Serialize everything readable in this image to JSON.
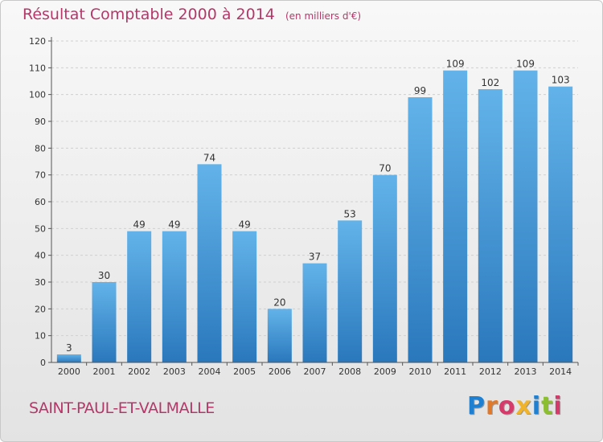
{
  "header": {
    "title": "Résultat Comptable 2000 à 2014",
    "unit": "(en milliers d'€)"
  },
  "footer": {
    "commune": "SAINT-PAUL-ET-VALMALLE",
    "logo": {
      "text": "Proxiti",
      "letter_colors": [
        "#1f7fd0",
        "#e0792a",
        "#d63a6a",
        "#f1b32a",
        "#1f7fd0",
        "#8cbf2f",
        "#d63a6a"
      ]
    }
  },
  "colors": {
    "title": "#b33868",
    "bar_light": "#63b3ea",
    "bar_dark": "#2a78bc",
    "grid": "#d0d0d0"
  },
  "chart_data": {
    "type": "bar",
    "title": "Résultat Comptable 2000 à 2014",
    "subtitle": "(en milliers d'€)",
    "categories": [
      "2000",
      "2001",
      "2002",
      "2003",
      "2004",
      "2005",
      "2006",
      "2007",
      "2008",
      "2009",
      "2010",
      "2011",
      "2012",
      "2013",
      "2014"
    ],
    "values": [
      3,
      30,
      49,
      49,
      74,
      49,
      20,
      37,
      53,
      70,
      99,
      109,
      102,
      109,
      103
    ],
    "ylim": [
      0,
      120
    ],
    "yticks": [
      0,
      10,
      20,
      30,
      40,
      50,
      60,
      70,
      80,
      90,
      100,
      110,
      120
    ],
    "grid": true,
    "data_labels": true
  }
}
